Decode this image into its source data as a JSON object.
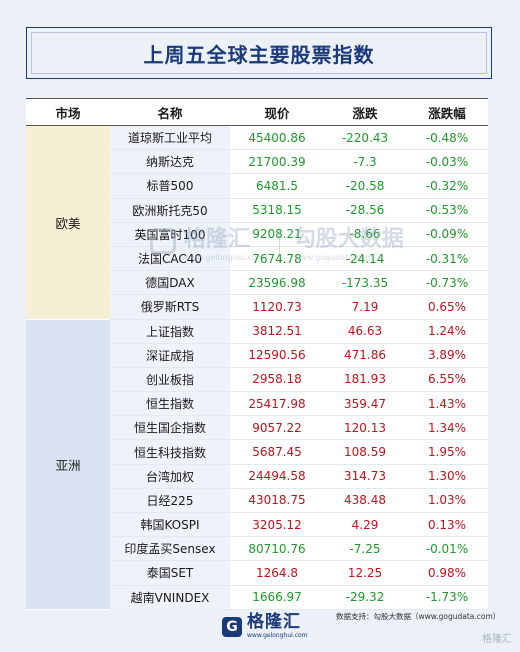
{
  "title": "上周五全球主要股票指数",
  "headers": [
    "市场",
    "名称",
    "现价",
    "涨跌",
    "涨跌幅"
  ],
  "markets": {
    "europe": "欧美",
    "asia": "亚洲"
  },
  "rows": [
    {
      "name": "道琼斯工业平均",
      "price": "45400.86",
      "change": "-220.43",
      "pct": "-0.48%",
      "dir": "neg"
    },
    {
      "name": "纳斯达克",
      "price": "21700.39",
      "change": "-7.3",
      "pct": "-0.03%",
      "dir": "neg"
    },
    {
      "name": "标普500",
      "price": "6481.5",
      "change": "-20.58",
      "pct": "-0.32%",
      "dir": "neg"
    },
    {
      "name": "欧洲斯托克50",
      "price": "5318.15",
      "change": "-28.56",
      "pct": "-0.53%",
      "dir": "neg"
    },
    {
      "name": "英国富时100",
      "price": "9208.21",
      "change": "-8.66",
      "pct": "-0.09%",
      "dir": "neg"
    },
    {
      "name": "法国CAC40",
      "price": "7674.78",
      "change": "-24.14",
      "pct": "-0.31%",
      "dir": "neg"
    },
    {
      "name": "德国DAX",
      "price": "23596.98",
      "change": "-173.35",
      "pct": "-0.73%",
      "dir": "neg"
    },
    {
      "name": "俄罗斯RTS",
      "price": "1120.73",
      "change": "7.19",
      "pct": "0.65%",
      "dir": "pos"
    },
    {
      "name": "上证指数",
      "price": "3812.51",
      "change": "46.63",
      "pct": "1.24%",
      "dir": "pos"
    },
    {
      "name": "深证成指",
      "price": "12590.56",
      "change": "471.86",
      "pct": "3.89%",
      "dir": "pos"
    },
    {
      "name": "创业板指",
      "price": "2958.18",
      "change": "181.93",
      "pct": "6.55%",
      "dir": "pos"
    },
    {
      "name": "恒生指数",
      "price": "25417.98",
      "change": "359.47",
      "pct": "1.43%",
      "dir": "pos"
    },
    {
      "name": "恒生国企指数",
      "price": "9057.22",
      "change": "120.13",
      "pct": "1.34%",
      "dir": "pos"
    },
    {
      "name": "恒生科技指数",
      "price": "5687.45",
      "change": "108.59",
      "pct": "1.95%",
      "dir": "pos"
    },
    {
      "name": "台湾加权",
      "price": "24494.58",
      "change": "314.73",
      "pct": "1.30%",
      "dir": "pos"
    },
    {
      "name": "日经225",
      "price": "43018.75",
      "change": "438.48",
      "pct": "1.03%",
      "dir": "pos"
    },
    {
      "name": "韩国KOSPI",
      "price": "3205.12",
      "change": "4.29",
      "pct": "0.13%",
      "dir": "pos"
    },
    {
      "name": "印度孟买Sensex",
      "price": "80710.76",
      "change": "-7.25",
      "pct": "-0.01%",
      "dir": "neg"
    },
    {
      "name": "泰国SET",
      "price": "1264.8",
      "change": "12.25",
      "pct": "0.98%",
      "dir": "pos"
    },
    {
      "name": "越南VNINDEX",
      "price": "1666.97",
      "change": "-29.32",
      "pct": "-1.73%",
      "dir": "neg"
    }
  ],
  "watermark": {
    "brand": "格隆汇",
    "brand_url": "www.gelonghui.com",
    "partner": "勾股大数据",
    "partner_url": "www.gogudata.com"
  },
  "source": "数据支持：勾股大数据（www.gogudata.com）",
  "footer": {
    "brand": "格隆汇",
    "url": "www.gelonghui.com",
    "icon": "G"
  },
  "corner_mark": "格隆汇"
}
